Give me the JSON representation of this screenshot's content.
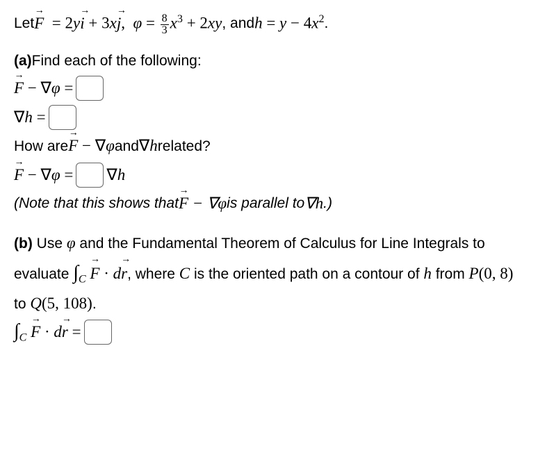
{
  "intro": {
    "prefix": "Let ",
    "F_def_lhs": "F",
    "F_def_rhs": " = 2yi + 3xj, ",
    "phi_lhs": "φ = ",
    "frac_num": "8",
    "frac_den": "3",
    "phi_rhs": "x³ + 2xy",
    "and": ", and ",
    "h_def": "h = y − 4x²",
    "period": "."
  },
  "part_a": {
    "label": "(a)",
    "text": " Find each of the following:",
    "line1_lhs": "F − ∇φ = ",
    "line2_lhs": "∇h = ",
    "q_prefix": "How are ",
    "q_mid": "F − ∇φ",
    "q_and": " and ",
    "q_grad_h": "∇h",
    "q_suffix": " related?",
    "line3_lhs": "F − ∇φ = ",
    "line3_rhs": " ∇h",
    "note_prefix": "(Note that this shows that ",
    "note_mid": "F − ∇φ",
    "note_is": " is parallel to ",
    "note_grad_h": "∇h",
    "note_suffix": ".)"
  },
  "part_b": {
    "label": "(b)",
    "text1": " Use ",
    "phi": "φ",
    "text2": " and the Fundamental Theorem of Calculus for Line Integrals to evaluate ",
    "integral": "∫",
    "int_sub": "C",
    "int_expr": " F · dr",
    "text3": ", where ",
    "C": "C",
    "text4": " is the oriented path on a contour of ",
    "h": "h",
    "text5": " from ",
    "P": "P(0, 8)",
    "text6": " to ",
    "Q": "Q(5, 108)",
    "period": ".",
    "final_lhs_int": "∫",
    "final_lhs_sub": "C",
    "final_lhs_expr": " F · dr = "
  }
}
